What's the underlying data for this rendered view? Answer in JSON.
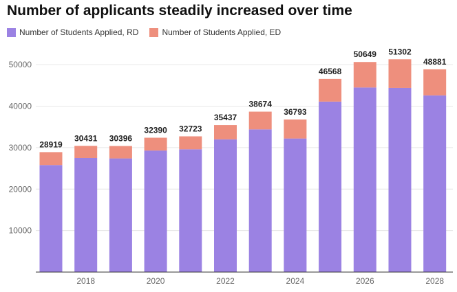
{
  "chart_data": {
    "type": "bar",
    "stacked": true,
    "title": "Number of applicants steadily increased over time",
    "xlabel": "",
    "ylabel": "",
    "categories": [
      2017,
      2018,
      2019,
      2020,
      2021,
      2022,
      2023,
      2024,
      2025,
      2026,
      2027,
      2028
    ],
    "x_tick_labels": [
      "2018",
      "2020",
      "2022",
      "2024",
      "2026",
      "2028"
    ],
    "y_ticks": [
      10000,
      20000,
      30000,
      40000,
      50000
    ],
    "ylim": [
      0,
      54000
    ],
    "totals": [
      28919,
      30431,
      30396,
      32390,
      32723,
      35437,
      38674,
      36793,
      46568,
      50649,
      51302,
      48881
    ],
    "series": [
      {
        "name": "Number of Students Applied, RD",
        "color": "#9b82e3",
        "values": [
          25800,
          27500,
          27400,
          29300,
          29600,
          32000,
          34400,
          32200,
          41100,
          44500,
          44400,
          42600
        ]
      },
      {
        "name": "Number of Students Applied, ED",
        "color": "#ee8f7d",
        "values": [
          3119,
          2931,
          2996,
          3090,
          3123,
          3437,
          4274,
          4593,
          5468,
          6149,
          6902,
          6281
        ]
      }
    ],
    "grid": true,
    "legend_position": "top-left"
  }
}
